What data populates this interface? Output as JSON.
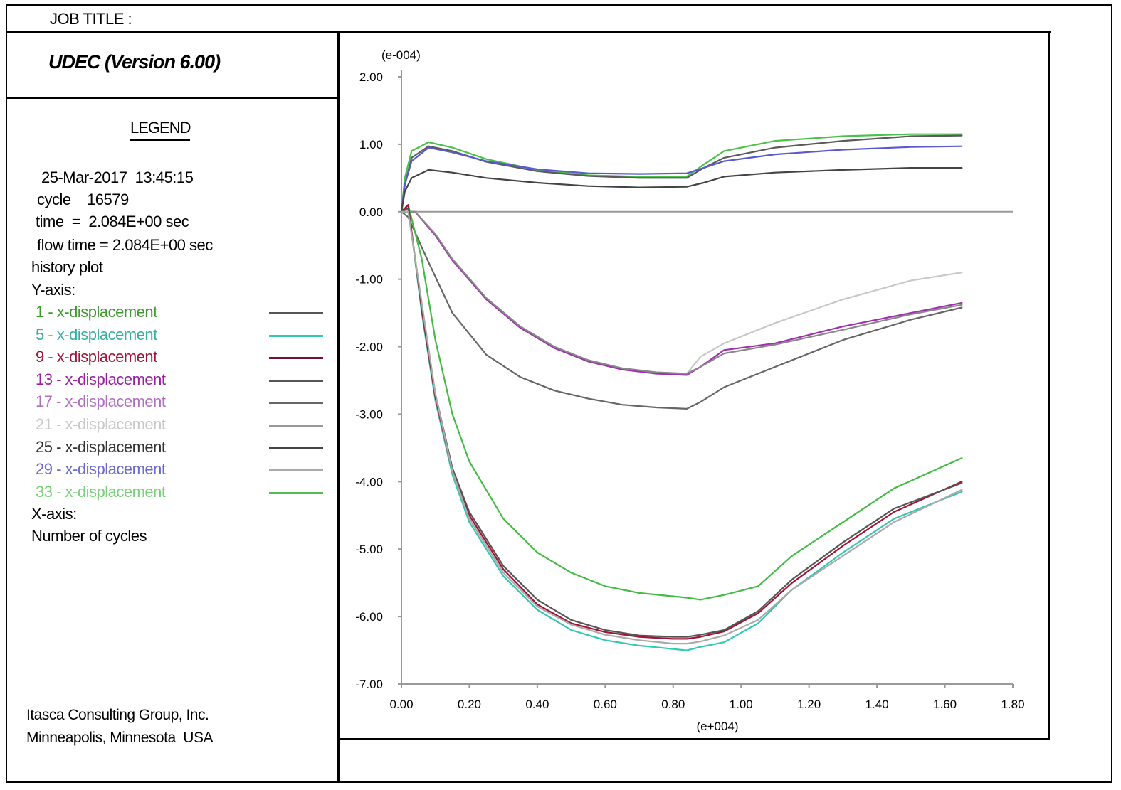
{
  "header": {
    "job_title": "JOB TITLE :"
  },
  "app_title": "UDEC (Version 6.00)",
  "legend": {
    "heading": "LEGEND",
    "timestamp": "25-Mar-2017  13:45:15",
    "cycle": "cycle    16579",
    "time": "time  =  2.084E+00 sec",
    "flow_time": "flow time = 2.084E+00 sec",
    "plot_kind": "history plot",
    "y_axis_label": "Y-axis:",
    "x_axis_label": "X-axis:",
    "x_axis_value": "Number of cycles",
    "items": [
      {
        "label": "1 - x-displacement",
        "number_color": "#6a8f5a",
        "text_color": "#3a9a2a",
        "line_color": "#555555"
      },
      {
        "label": "5 - x-displacement",
        "number_color": "#2aa090",
        "text_color": "#30b0a0",
        "line_color": "#35c7b5"
      },
      {
        "label": "9 - x-displacement",
        "number_color": "#8a1030",
        "text_color": "#a01535",
        "line_color": "#7a1030"
      },
      {
        "label": "13 - x-displacement",
        "number_color": "#8a108a",
        "text_color": "#9a20a0",
        "line_color": "#555555"
      },
      {
        "label": "17 - x-displacement",
        "number_color": "#9a8aa0",
        "text_color": "#b070c0",
        "line_color": "#666666"
      },
      {
        "label": "21 - x-displacement",
        "number_color": "#c0c0c0",
        "text_color": "#c8c8c8",
        "line_color": "#999999"
      },
      {
        "label": "25 - x-displacement",
        "number_color": "#333333",
        "text_color": "#333333",
        "line_color": "#444444"
      },
      {
        "label": "29 - x-displacement",
        "number_color": "#6060c0",
        "text_color": "#6a6ad0",
        "line_color": "#aaaaaa"
      },
      {
        "label": "33 - x-displacement",
        "number_color": "#70c870",
        "text_color": "#78d078",
        "line_color": "#55bb55"
      }
    ]
  },
  "footer": {
    "line1": "Itasca Consulting Group, Inc.",
    "line2": "Minneapolis, Minnesota  USA"
  },
  "chart_data": {
    "type": "line",
    "y_multiplier": "(e-004)",
    "x_multiplier": "(e+004)",
    "xlim": [
      0,
      1.8
    ],
    "ylim": [
      -7,
      2
    ],
    "x_ticks": [
      "0.00",
      "0.20",
      "0.40",
      "0.60",
      "0.80",
      "1.00",
      "1.20",
      "1.40",
      "1.60",
      "1.80"
    ],
    "y_ticks": [
      "2.00",
      "1.00",
      "0.00",
      "-1.00",
      "-2.00",
      "-3.00",
      "-4.00",
      "-5.00",
      "-6.00",
      "-7.00"
    ],
    "zero_line": true,
    "series": [
      {
        "name": "1 - x-displacement",
        "color": "#4cc04c",
        "x": [
          0,
          0.01,
          0.03,
          0.08,
          0.15,
          0.25,
          0.4,
          0.55,
          0.7,
          0.84,
          0.89,
          0.95,
          1.1,
          1.3,
          1.5,
          1.65
        ],
        "y": [
          0,
          0.5,
          0.9,
          1.03,
          0.95,
          0.78,
          0.62,
          0.54,
          0.52,
          0.52,
          0.7,
          0.9,
          1.05,
          1.12,
          1.15,
          1.15
        ]
      },
      {
        "name": "5 - x-displacement",
        "color": "#5a5a5a",
        "x": [
          0,
          0.01,
          0.03,
          0.08,
          0.15,
          0.25,
          0.4,
          0.55,
          0.7,
          0.84,
          0.89,
          0.95,
          1.1,
          1.3,
          1.5,
          1.65
        ],
        "y": [
          0,
          0.4,
          0.8,
          0.97,
          0.9,
          0.74,
          0.6,
          0.53,
          0.5,
          0.5,
          0.65,
          0.8,
          0.95,
          1.05,
          1.12,
          1.13
        ]
      },
      {
        "name": "29 - x-displacement",
        "color": "#5a5ad0",
        "x": [
          0,
          0.01,
          0.03,
          0.08,
          0.15,
          0.25,
          0.4,
          0.55,
          0.7,
          0.84,
          0.89,
          0.95,
          1.1,
          1.3,
          1.5,
          1.65
        ],
        "y": [
          0,
          0.4,
          0.75,
          0.95,
          0.88,
          0.75,
          0.63,
          0.57,
          0.56,
          0.57,
          0.65,
          0.75,
          0.85,
          0.92,
          0.96,
          0.97
        ]
      },
      {
        "name": "25 - x-displacement",
        "color": "#444444",
        "x": [
          0,
          0.01,
          0.03,
          0.08,
          0.15,
          0.25,
          0.4,
          0.55,
          0.7,
          0.84,
          0.89,
          0.95,
          1.1,
          1.3,
          1.5,
          1.65
        ],
        "y": [
          0,
          0.3,
          0.5,
          0.62,
          0.58,
          0.5,
          0.43,
          0.38,
          0.36,
          0.37,
          0.43,
          0.52,
          0.58,
          0.62,
          0.65,
          0.65
        ]
      },
      {
        "name": "21 - x-displacement",
        "color": "#c8c8c8",
        "x": [
          0,
          0.04,
          0.1,
          0.15,
          0.25,
          0.35,
          0.45,
          0.55,
          0.65,
          0.75,
          0.84,
          0.88,
          0.95,
          1.1,
          1.3,
          1.5,
          1.65
        ],
        "y": [
          0,
          0.0,
          -0.35,
          -0.72,
          -1.28,
          -1.7,
          -2.0,
          -2.2,
          -2.32,
          -2.38,
          -2.4,
          -2.15,
          -1.95,
          -1.65,
          -1.3,
          -1.02,
          -0.9
        ]
      },
      {
        "name": "13 - x-displacement",
        "color": "#a030b0",
        "x": [
          0,
          0.04,
          0.1,
          0.15,
          0.25,
          0.35,
          0.45,
          0.55,
          0.65,
          0.75,
          0.84,
          0.88,
          0.95,
          1.1,
          1.3,
          1.5,
          1.65
        ],
        "y": [
          0,
          0.0,
          -0.35,
          -0.72,
          -1.3,
          -1.72,
          -2.02,
          -2.22,
          -2.34,
          -2.4,
          -2.42,
          -2.3,
          -2.05,
          -1.95,
          -1.7,
          -1.5,
          -1.35
        ]
      },
      {
        "name": "17 - x-displacement",
        "color": "#888888",
        "x": [
          0,
          0.04,
          0.1,
          0.15,
          0.25,
          0.35,
          0.45,
          0.55,
          0.65,
          0.75,
          0.84,
          0.88,
          0.95,
          1.1,
          1.3,
          1.5,
          1.65
        ],
        "y": [
          0,
          0.0,
          -0.33,
          -0.7,
          -1.28,
          -1.7,
          -2.0,
          -2.2,
          -2.32,
          -2.38,
          -2.4,
          -2.3,
          -2.1,
          -1.97,
          -1.75,
          -1.52,
          -1.38
        ]
      },
      {
        "name": "9 - x-displacement",
        "color": "#666666",
        "x": [
          0,
          0.02,
          0.08,
          0.15,
          0.25,
          0.35,
          0.45,
          0.55,
          0.65,
          0.75,
          0.84,
          0.88,
          0.95,
          1.1,
          1.3,
          1.5,
          1.65
        ],
        "y": [
          0,
          -0.08,
          -0.75,
          -1.5,
          -2.12,
          -2.45,
          -2.65,
          -2.77,
          -2.86,
          -2.9,
          -2.92,
          -2.82,
          -2.6,
          -2.3,
          -1.9,
          -1.6,
          -1.42
        ]
      },
      {
        "name": "33 - x-displacement",
        "color": "#44bb44",
        "x": [
          0,
          0.02,
          0.06,
          0.1,
          0.15,
          0.2,
          0.3,
          0.4,
          0.5,
          0.6,
          0.7,
          0.8,
          0.84,
          0.88,
          0.95,
          1.05,
          1.15,
          1.3,
          1.45,
          1.65
        ],
        "y": [
          0,
          0.1,
          -0.7,
          -1.9,
          -3.0,
          -3.7,
          -4.55,
          -5.05,
          -5.35,
          -5.55,
          -5.65,
          -5.7,
          -5.72,
          -5.75,
          -5.68,
          -5.55,
          -5.1,
          -4.6,
          -4.1,
          -3.65
        ]
      },
      {
        "name": "5 - x-displacement",
        "color": "#35c7b5",
        "x": [
          0,
          0.02,
          0.06,
          0.1,
          0.15,
          0.2,
          0.3,
          0.4,
          0.5,
          0.6,
          0.7,
          0.8,
          0.84,
          0.88,
          0.95,
          1.05,
          1.15,
          1.3,
          1.45,
          1.65
        ],
        "y": [
          0,
          0.1,
          -1.5,
          -2.8,
          -3.9,
          -4.6,
          -5.4,
          -5.9,
          -6.2,
          -6.35,
          -6.43,
          -6.48,
          -6.5,
          -6.45,
          -6.38,
          -6.1,
          -5.6,
          -5.05,
          -4.55,
          -4.15
        ]
      },
      {
        "name": "9 - x-displacement",
        "color": "#a01535",
        "x": [
          0,
          0.02,
          0.06,
          0.1,
          0.15,
          0.2,
          0.3,
          0.4,
          0.5,
          0.6,
          0.7,
          0.8,
          0.84,
          0.88,
          0.95,
          1.05,
          1.15,
          1.3,
          1.45,
          1.65
        ],
        "y": [
          0,
          0.1,
          -1.45,
          -2.75,
          -3.85,
          -4.5,
          -5.3,
          -5.82,
          -6.1,
          -6.23,
          -6.3,
          -6.33,
          -6.33,
          -6.3,
          -6.22,
          -5.95,
          -5.5,
          -4.95,
          -4.45,
          -4.0
        ]
      },
      {
        "name": "25 - x-displacement",
        "color": "#555555",
        "x": [
          0,
          0.02,
          0.06,
          0.1,
          0.15,
          0.2,
          0.3,
          0.4,
          0.5,
          0.6,
          0.7,
          0.8,
          0.84,
          0.88,
          0.95,
          1.05,
          1.15,
          1.3,
          1.45,
          1.65
        ],
        "y": [
          0,
          0.05,
          -1.4,
          -2.7,
          -3.8,
          -4.45,
          -5.25,
          -5.75,
          -6.05,
          -6.2,
          -6.28,
          -6.3,
          -6.3,
          -6.27,
          -6.2,
          -5.92,
          -5.45,
          -4.9,
          -4.4,
          -4.02
        ]
      },
      {
        "name": "1 - x-displacement",
        "color": "#aaaaaa",
        "x": [
          0,
          0.02,
          0.06,
          0.1,
          0.15,
          0.2,
          0.3,
          0.4,
          0.5,
          0.6,
          0.7,
          0.8,
          0.84,
          0.88,
          0.95,
          1.05,
          1.15,
          1.3,
          1.45,
          1.65
        ],
        "y": [
          0,
          0.0,
          -1.35,
          -2.7,
          -3.85,
          -4.55,
          -5.35,
          -5.85,
          -6.12,
          -6.27,
          -6.35,
          -6.4,
          -6.4,
          -6.37,
          -6.28,
          -6.05,
          -5.6,
          -5.1,
          -4.6,
          -4.12
        ]
      }
    ]
  }
}
